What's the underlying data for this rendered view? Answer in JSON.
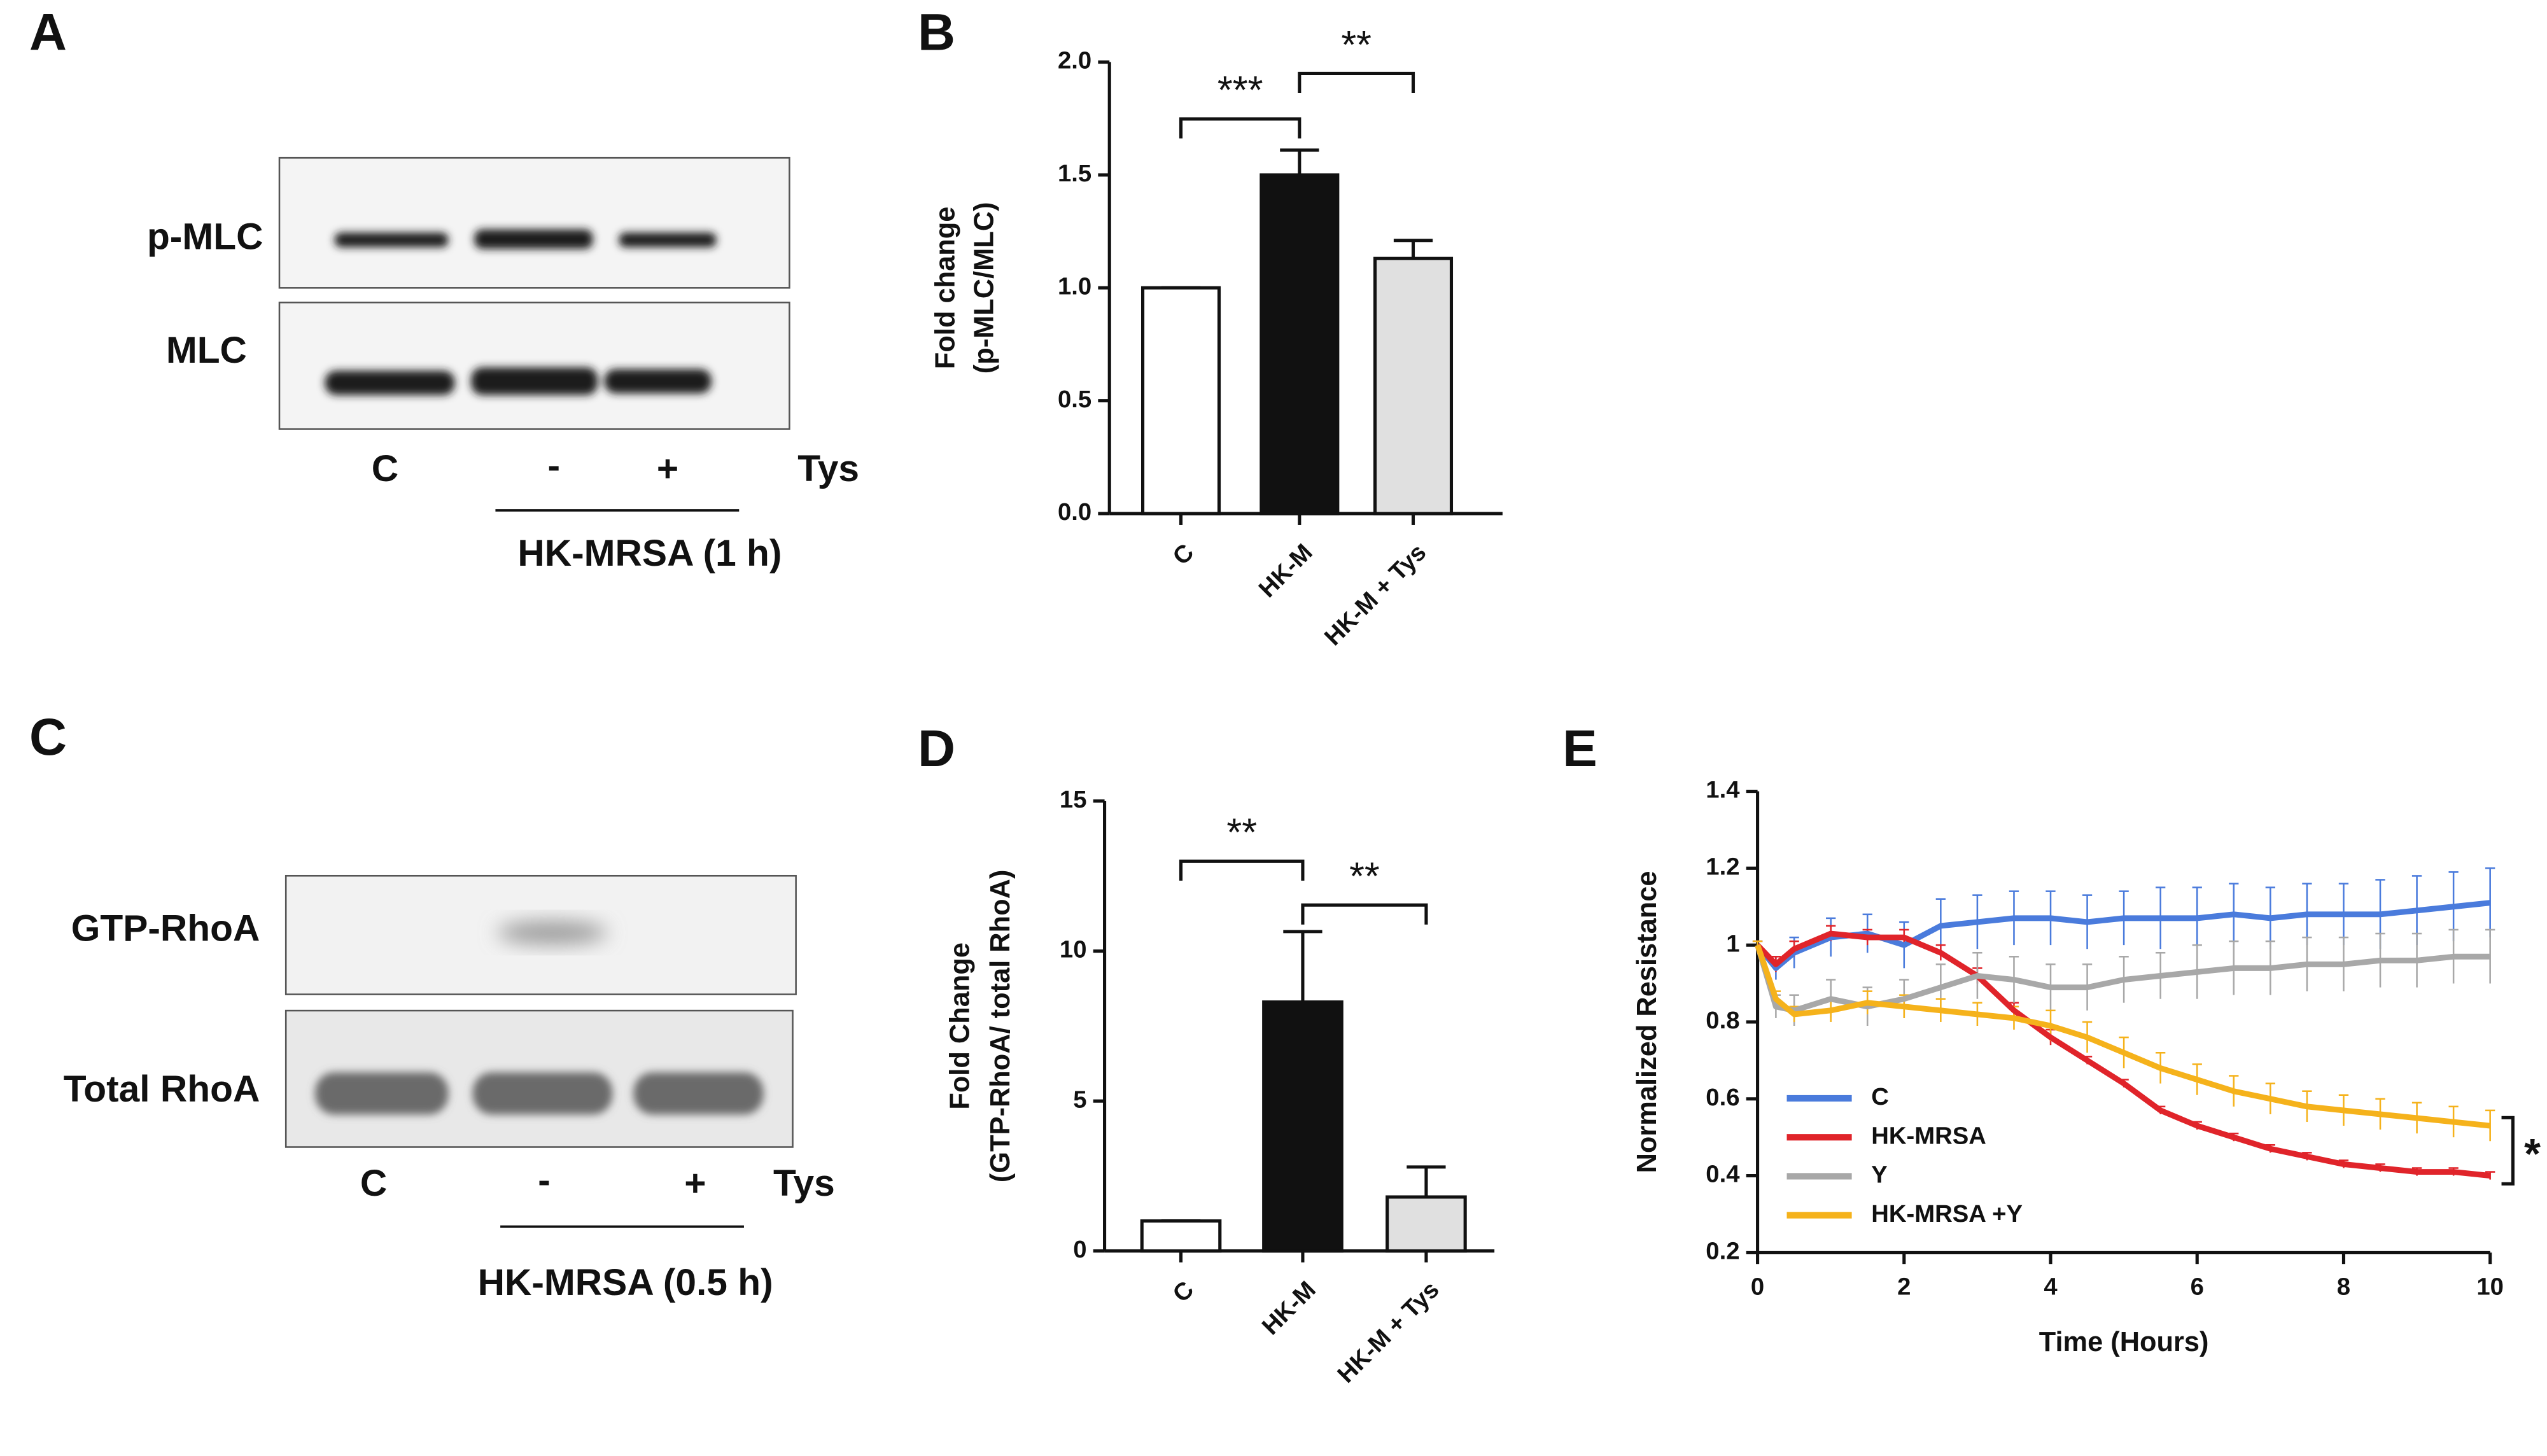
{
  "panel_letters": [
    "A",
    "B",
    "C",
    "D",
    "E"
  ],
  "blots": [
    {
      "rows": [
        "p-MLC",
        "MLC"
      ],
      "lanes": [
        "C",
        "-",
        "+"
      ],
      "treatment_label": "Tys",
      "group_label": "HK-MRSA (1 h)"
    },
    {
      "rows": [
        "GTP-RhoA",
        "Total RhoA"
      ],
      "lanes": [
        "C",
        "-",
        "+"
      ],
      "treatment_label": "Tys",
      "group_label": "HK-MRSA (0.5 h)"
    }
  ],
  "chart_data": [
    {
      "type": "bar",
      "y_label": [
        "Fold change",
        "(p-MLC/MLC)"
      ],
      "categories": [
        "C",
        "HK-M",
        "HK-M + Tys"
      ],
      "values": [
        1.0,
        1.5,
        1.13
      ],
      "errors": [
        0,
        0.11,
        0.08
      ],
      "colors": [
        "#ffffff",
        "#111111",
        "#e0e0e0"
      ],
      "ylim": [
        0,
        2
      ],
      "yticks": [
        {
          "value": 0,
          "label": "0.0"
        },
        {
          "value": 0.5,
          "label": "0.5"
        },
        {
          "value": 1,
          "label": "1.0"
        },
        {
          "value": 1.5,
          "label": "1.5"
        },
        {
          "value": 2,
          "label": "2.0"
        }
      ],
      "significance": [
        {
          "label": "***",
          "between": [
            "C",
            "HK-M"
          ]
        },
        {
          "label": "**",
          "between": [
            "HK-M",
            "HK-M + Tys"
          ]
        }
      ]
    },
    {
      "type": "bar",
      "y_label": [
        "Fold Change",
        "(GTP-RhoA/ total RhoA)"
      ],
      "categories": [
        "C",
        "HK-M",
        "HK-M + Tys"
      ],
      "values": [
        1.0,
        8.3,
        1.8
      ],
      "errors": [
        0,
        2.35,
        1.0
      ],
      "colors": [
        "#ffffff",
        "#111111",
        "#e0e0e0"
      ],
      "ylim": [
        0,
        15
      ],
      "yticks": [
        0,
        5,
        10,
        15
      ],
      "significance": [
        {
          "label": "**",
          "between": [
            "C",
            "HK-M"
          ]
        },
        {
          "label": "**",
          "between": [
            "HK-M",
            "HK-M + Tys"
          ]
        }
      ]
    },
    {
      "type": "line",
      "x_label": "Time (Hours)",
      "y_label": [
        "Normalized Resistance"
      ],
      "x": [
        0,
        0.25,
        0.5,
        1,
        1.5,
        2,
        2.5,
        3,
        3.5,
        4,
        4.5,
        5,
        5.5,
        6,
        6.5,
        7,
        7.5,
        8,
        8.5,
        9,
        9.5,
        10
      ],
      "xlim": [
        0,
        10
      ],
      "xticks": [
        0,
        2,
        4,
        6,
        8,
        10
      ],
      "ylim": [
        0.2,
        1.4
      ],
      "yticks": [
        0.2,
        0.4,
        0.6,
        0.8,
        1,
        1.2,
        1.4
      ],
      "legend": "lower left",
      "series": [
        {
          "name": "C",
          "color": "#4a7bdc",
          "values": [
            1.0,
            0.94,
            0.98,
            1.02,
            1.03,
            1.0,
            1.05,
            1.06,
            1.07,
            1.07,
            1.06,
            1.07,
            1.07,
            1.07,
            1.08,
            1.07,
            1.08,
            1.08,
            1.08,
            1.09,
            1.1,
            1.11
          ],
          "errors": [
            0.01,
            0.03,
            0.04,
            0.05,
            0.05,
            0.06,
            0.07,
            0.07,
            0.07,
            0.07,
            0.07,
            0.07,
            0.08,
            0.08,
            0.08,
            0.08,
            0.08,
            0.08,
            0.09,
            0.09,
            0.09,
            0.09
          ]
        },
        {
          "name": "HK-MRSA",
          "color": "#e0242a",
          "values": [
            1.0,
            0.95,
            0.99,
            1.03,
            1.02,
            1.02,
            0.98,
            0.92,
            0.83,
            0.76,
            0.7,
            0.64,
            0.57,
            0.53,
            0.5,
            0.47,
            0.45,
            0.43,
            0.42,
            0.41,
            0.41,
            0.4
          ],
          "errors": [
            0.01,
            0.02,
            0.02,
            0.02,
            0.02,
            0.02,
            0.02,
            0.02,
            0.02,
            0.02,
            0.01,
            0.01,
            0.01,
            0.01,
            0.01,
            0.01,
            0.01,
            0.01,
            0.01,
            0.01,
            0.01,
            0.01
          ]
        },
        {
          "name": "Y",
          "color": "#a8a8a8",
          "values": [
            1.0,
            0.84,
            0.83,
            0.86,
            0.84,
            0.86,
            0.89,
            0.92,
            0.91,
            0.89,
            0.89,
            0.91,
            0.92,
            0.93,
            0.94,
            0.94,
            0.95,
            0.95,
            0.96,
            0.96,
            0.97,
            0.97
          ],
          "errors": [
            0.01,
            0.03,
            0.04,
            0.05,
            0.05,
            0.05,
            0.06,
            0.06,
            0.06,
            0.06,
            0.06,
            0.06,
            0.06,
            0.07,
            0.07,
            0.07,
            0.07,
            0.07,
            0.07,
            0.07,
            0.07,
            0.07
          ]
        },
        {
          "name": "HK-MRSA +Y",
          "color": "#f5b21b",
          "values": [
            1.0,
            0.86,
            0.82,
            0.83,
            0.85,
            0.84,
            0.83,
            0.82,
            0.81,
            0.79,
            0.76,
            0.72,
            0.68,
            0.65,
            0.62,
            0.6,
            0.58,
            0.57,
            0.56,
            0.55,
            0.54,
            0.53
          ],
          "errors": [
            0.01,
            0.02,
            0.02,
            0.03,
            0.03,
            0.03,
            0.03,
            0.03,
            0.03,
            0.04,
            0.04,
            0.04,
            0.04,
            0.04,
            0.04,
            0.04,
            0.04,
            0.04,
            0.04,
            0.04,
            0.04,
            0.04
          ]
        }
      ],
      "annotation": "*"
    }
  ]
}
